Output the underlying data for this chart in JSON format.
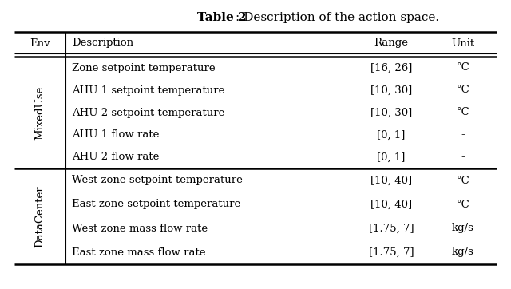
{
  "title": "Table 2",
  "title_suffix": ": Description of the action space.",
  "headers": [
    "Env",
    "Description",
    "Range",
    "Unit"
  ],
  "sections": [
    {
      "env_label": "MixedUse",
      "rows": [
        [
          "Zone setpoint temperature",
          "[16, 26]",
          "°C"
        ],
        [
          "AHU 1 setpoint temperature",
          "[10, 30]",
          "°C"
        ],
        [
          "AHU 2 setpoint temperature",
          "[10, 30]",
          "°C"
        ],
        [
          "AHU 1 flow rate",
          "[0, 1]",
          "-"
        ],
        [
          "AHU 2 flow rate",
          "[0, 1]",
          "-"
        ]
      ]
    },
    {
      "env_label": "DataCenter",
      "rows": [
        [
          "West zone setpoint temperature",
          "[10, 40]",
          "°C"
        ],
        [
          "East zone setpoint temperature",
          "[10, 40]",
          "°C"
        ],
        [
          "West zone mass flow rate",
          "[1.75, 7]",
          "kg/s"
        ],
        [
          "East zone mass flow rate",
          "[1.75, 7]",
          "kg/s"
        ]
      ]
    }
  ],
  "bg_color": "#ffffff",
  "text_color": "#000000",
  "font_size": 9.5,
  "title_font_size": 11.0
}
